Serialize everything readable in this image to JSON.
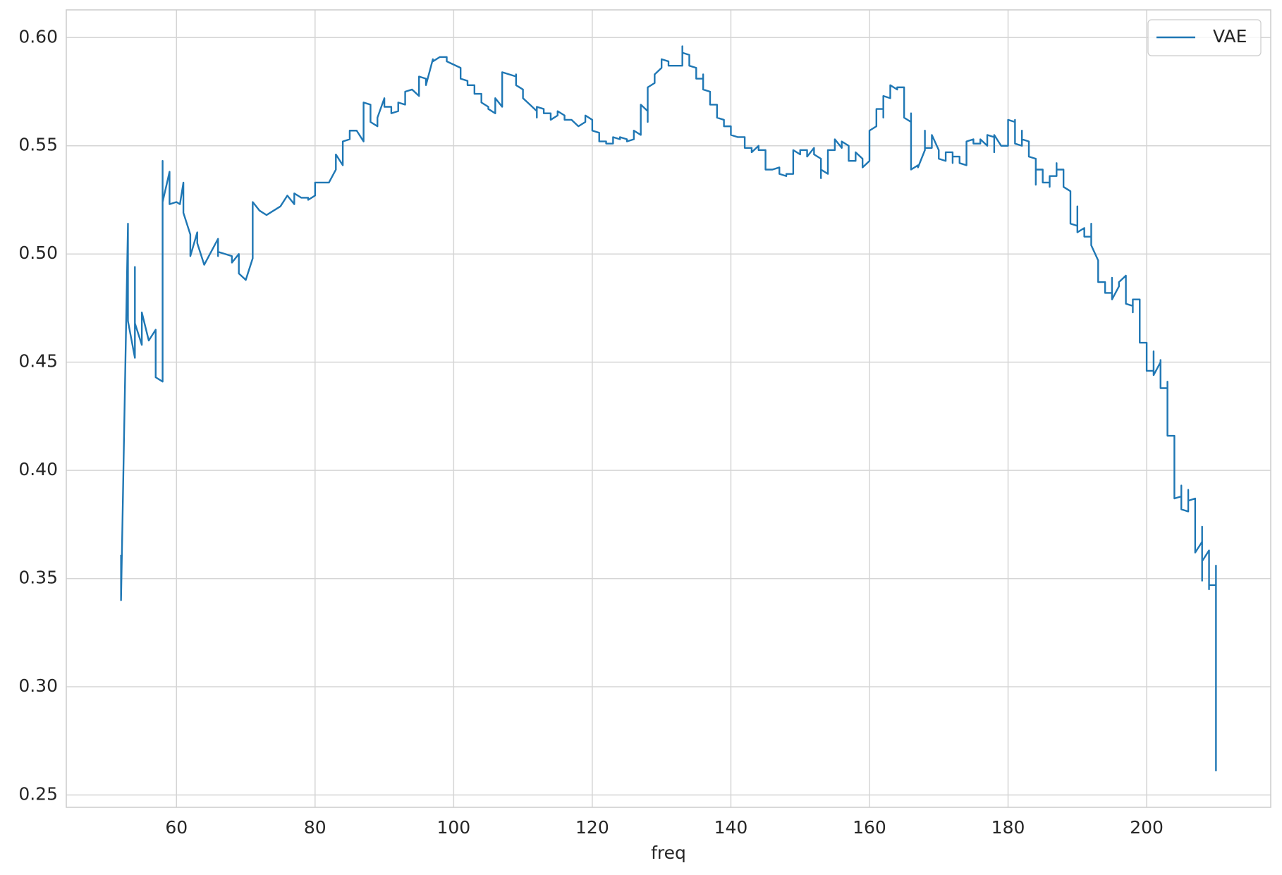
{
  "chart_data": {
    "type": "line",
    "xlabel": "freq",
    "legend": "upper right",
    "grid": true,
    "xlim": [
      44.1,
      217.9
    ],
    "xticks": [
      60,
      80,
      100,
      120,
      140,
      160,
      180,
      200
    ],
    "ylim": [
      0.2443,
      0.6128
    ],
    "yticks": [
      0.25,
      {
        "value": 0.3,
        "label": "0.30"
      },
      0.35,
      {
        "value": 0.4,
        "label": "0.40"
      },
      0.45,
      {
        "value": 0.5,
        "label": "0.50"
      },
      0.55,
      {
        "value": 0.6,
        "label": "0.60"
      }
    ],
    "series": [
      {
        "name": "VAE",
        "color": "#1f77b4",
        "x": [
          52,
          52,
          53,
          53,
          54,
          54,
          54,
          55,
          55,
          56,
          57,
          57,
          58,
          58,
          58,
          59,
          59,
          60,
          60.5,
          61,
          61,
          62,
          62,
          63,
          63,
          64,
          66,
          66,
          66,
          68,
          68,
          69,
          69,
          70,
          71,
          71,
          72,
          73,
          75,
          76,
          77,
          77,
          78,
          79,
          79,
          80,
          80,
          82,
          83,
          83,
          84,
          84,
          85,
          85,
          86,
          87,
          87,
          88,
          88,
          89,
          89,
          90,
          90,
          91,
          91,
          92,
          92,
          93,
          93,
          94,
          95,
          95,
          96,
          96,
          97,
          97,
          98,
          99,
          99,
          101,
          101,
          102,
          102,
          103,
          103,
          104,
          104,
          105,
          105,
          106,
          106,
          107,
          107,
          109,
          109,
          109,
          110,
          110,
          111,
          112,
          112,
          112,
          113,
          113,
          114,
          114,
          115,
          115,
          116,
          116,
          117,
          118,
          119,
          119,
          120,
          120,
          121,
          121,
          122,
          122,
          123,
          123,
          124,
          124,
          125,
          125,
          126,
          126,
          127,
          127,
          128,
          128,
          128,
          129,
          129,
          130,
          130,
          131,
          131,
          132,
          133,
          133,
          133,
          134,
          134,
          135,
          135,
          136,
          136,
          136,
          137,
          137,
          138,
          138,
          139,
          139,
          140,
          140,
          141,
          142,
          142,
          143,
          143,
          144,
          144,
          145,
          145,
          146,
          147,
          147,
          148,
          148,
          149,
          149,
          150,
          150,
          151,
          151,
          152,
          152,
          153,
          153,
          153,
          154,
          154,
          155,
          155,
          156,
          156,
          157,
          157,
          158,
          158,
          159,
          159,
          160,
          160,
          161,
          161,
          162,
          162,
          162,
          163,
          163,
          164,
          164,
          165,
          165,
          166,
          166,
          166,
          167,
          167,
          168,
          168,
          168,
          169,
          169,
          170,
          170,
          171,
          171,
          172,
          172,
          172,
          173,
          173,
          174,
          174,
          175,
          175,
          176,
          176,
          177,
          177,
          178,
          178,
          178,
          179,
          180,
          180,
          181,
          181,
          181,
          182,
          182,
          182,
          183,
          183,
          184,
          184,
          184,
          185,
          185,
          186,
          186,
          186,
          187,
          187,
          187,
          188,
          188,
          189,
          189,
          190,
          190,
          190,
          191,
          191,
          192,
          192,
          192,
          193,
          193,
          194,
          194,
          195,
          195,
          195,
          196,
          196,
          197,
          197,
          198,
          198,
          198,
          199,
          199,
          200,
          200,
          201,
          201,
          201,
          202,
          202,
          202,
          203,
          203,
          203,
          204,
          204,
          205,
          205,
          205,
          206,
          206,
          206,
          207,
          207,
          208,
          208,
          208,
          208,
          209,
          209,
          209,
          210,
          210,
          210
        ],
        "values": [
          0.361,
          0.34,
          0.514,
          0.469,
          0.452,
          0.494,
          0.468,
          0.458,
          0.473,
          0.46,
          0.465,
          0.443,
          0.441,
          0.543,
          0.524,
          0.538,
          0.523,
          0.524,
          0.523,
          0.533,
          0.519,
          0.509,
          0.499,
          0.51,
          0.505,
          0.495,
          0.507,
          0.499,
          0.501,
          0.499,
          0.496,
          0.5,
          0.491,
          0.488,
          0.498,
          0.524,
          0.52,
          0.518,
          0.522,
          0.527,
          0.523,
          0.528,
          0.526,
          0.526,
          0.525,
          0.527,
          0.533,
          0.533,
          0.539,
          0.546,
          0.541,
          0.552,
          0.553,
          0.557,
          0.557,
          0.552,
          0.57,
          0.569,
          0.561,
          0.559,
          0.563,
          0.572,
          0.568,
          0.568,
          0.565,
          0.566,
          0.57,
          0.569,
          0.575,
          0.576,
          0.573,
          0.582,
          0.581,
          0.578,
          0.59,
          0.589,
          0.591,
          0.591,
          0.589,
          0.586,
          0.581,
          0.58,
          0.578,
          0.578,
          0.574,
          0.574,
          0.57,
          0.568,
          0.567,
          0.565,
          0.572,
          0.568,
          0.584,
          0.582,
          0.583,
          0.578,
          0.576,
          0.572,
          0.569,
          0.566,
          0.563,
          0.568,
          0.567,
          0.565,
          0.565,
          0.562,
          0.564,
          0.566,
          0.564,
          0.562,
          0.562,
          0.559,
          0.561,
          0.564,
          0.562,
          0.557,
          0.556,
          0.552,
          0.552,
          0.551,
          0.551,
          0.554,
          0.553,
          0.554,
          0.553,
          0.552,
          0.553,
          0.557,
          0.555,
          0.569,
          0.566,
          0.561,
          0.577,
          0.579,
          0.583,
          0.586,
          0.59,
          0.589,
          0.587,
          0.587,
          0.587,
          0.596,
          0.593,
          0.592,
          0.587,
          0.586,
          0.581,
          0.581,
          0.583,
          0.576,
          0.575,
          0.569,
          0.569,
          0.563,
          0.562,
          0.559,
          0.559,
          0.555,
          0.554,
          0.554,
          0.549,
          0.549,
          0.547,
          0.55,
          0.548,
          0.548,
          0.539,
          0.539,
          0.54,
          0.537,
          0.536,
          0.537,
          0.537,
          0.548,
          0.546,
          0.548,
          0.548,
          0.545,
          0.549,
          0.546,
          0.544,
          0.535,
          0.539,
          0.537,
          0.548,
          0.548,
          0.553,
          0.549,
          0.552,
          0.55,
          0.543,
          0.543,
          0.547,
          0.544,
          0.54,
          0.543,
          0.557,
          0.559,
          0.567,
          0.567,
          0.563,
          0.573,
          0.572,
          0.578,
          0.576,
          0.577,
          0.577,
          0.563,
          0.561,
          0.565,
          0.539,
          0.541,
          0.54,
          0.548,
          0.557,
          0.549,
          0.549,
          0.555,
          0.548,
          0.544,
          0.543,
          0.547,
          0.547,
          0.542,
          0.545,
          0.545,
          0.542,
          0.541,
          0.552,
          0.553,
          0.551,
          0.551,
          0.553,
          0.55,
          0.555,
          0.554,
          0.547,
          0.555,
          0.55,
          0.55,
          0.562,
          0.561,
          0.562,
          0.551,
          0.55,
          0.557,
          0.553,
          0.552,
          0.545,
          0.544,
          0.532,
          0.539,
          0.539,
          0.533,
          0.533,
          0.531,
          0.536,
          0.536,
          0.542,
          0.539,
          0.539,
          0.531,
          0.529,
          0.514,
          0.513,
          0.522,
          0.51,
          0.512,
          0.508,
          0.508,
          0.514,
          0.504,
          0.497,
          0.487,
          0.487,
          0.482,
          0.482,
          0.489,
          0.479,
          0.485,
          0.487,
          0.49,
          0.477,
          0.476,
          0.473,
          0.479,
          0.479,
          0.459,
          0.459,
          0.446,
          0.446,
          0.455,
          0.444,
          0.45,
          0.451,
          0.438,
          0.438,
          0.441,
          0.416,
          0.416,
          0.387,
          0.388,
          0.393,
          0.382,
          0.381,
          0.391,
          0.386,
          0.387,
          0.362,
          0.367,
          0.374,
          0.349,
          0.358,
          0.363,
          0.345,
          0.347,
          0.347,
          0.356,
          0.261
        ]
      }
    ]
  }
}
